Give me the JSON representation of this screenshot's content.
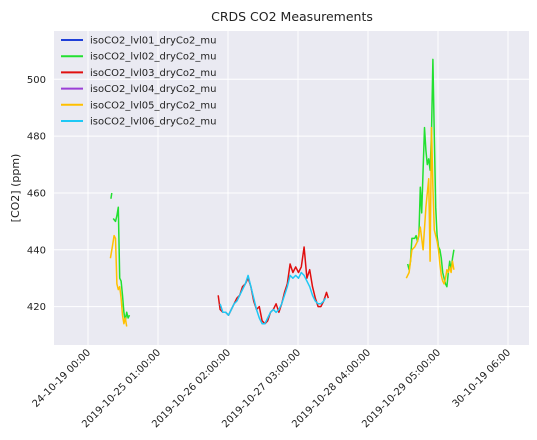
{
  "chart_data": {
    "type": "line",
    "title": "CRDS CO2 Measurements",
    "xlabel": "",
    "ylabel": "[CO2] (ppm)",
    "ylim": [
      406.5,
      517
    ],
    "xlim": [
      "2019-10-24T00:00",
      "2019-10-30T06:00"
    ],
    "x_ticks": [
      {
        "x": "2019-10-24T00:00",
        "label": "24-10-19 00:00"
      },
      {
        "x": "2019-10-25T01:00",
        "label": "2019-10-25 01:00:00"
      },
      {
        "x": "2019-10-26T02:00",
        "label": "2019-10-26 02:00:00"
      },
      {
        "x": "2019-10-27T03:00",
        "label": "2019-10-27 03:00:00"
      },
      {
        "x": "2019-10-28T04:00",
        "label": "2019-10-28 04:00:00"
      },
      {
        "x": "2019-10-29T05:00",
        "label": "2019-10-29 05:00:00"
      },
      {
        "x": "2019-10-30T06:00",
        "label": "30-10-19 06:00"
      }
    ],
    "y_ticks": [
      420,
      440,
      460,
      480,
      500
    ],
    "grid": true,
    "legend_position": "top-left",
    "series": [
      {
        "name": "isoCO2_lvl01_dryCo2_mu",
        "color": "#1f3fd8",
        "segments": []
      },
      {
        "name": "isoCO2_lvl02_dryCo2_mu",
        "color": "#22e030",
        "segments": [
          [
            [
              "2019-10-24T08:10",
              458
            ],
            [
              "2019-10-24T08:30",
              460
            ]
          ],
          [
            [
              "2019-10-24T09:00",
              451
            ],
            [
              "2019-10-24T09:50",
              450
            ],
            [
              "2019-10-24T10:20",
              452
            ],
            [
              "2019-10-24T10:50",
              455
            ],
            [
              "2019-10-24T11:20",
              430
            ],
            [
              "2019-10-24T11:50",
              429
            ],
            [
              "2019-10-24T12:20",
              424
            ],
            [
              "2019-10-24T12:50",
              418
            ],
            [
              "2019-10-24T13:20",
              415
            ],
            [
              "2019-10-24T13:50",
              418
            ],
            [
              "2019-10-24T14:20",
              416
            ],
            [
              "2019-10-24T14:50",
              417
            ]
          ],
          [
            [
              "2019-10-28T18:10",
              435
            ],
            [
              "2019-10-28T18:40",
              433
            ],
            [
              "2019-10-28T19:10",
              436
            ],
            [
              "2019-10-28T19:40",
              444
            ],
            [
              "2019-10-28T20:40",
              444
            ],
            [
              "2019-10-28T21:10",
              445
            ],
            [
              "2019-10-28T21:40",
              443
            ],
            [
              "2019-10-28T22:10",
              445
            ],
            [
              "2019-10-28T22:40",
              462
            ],
            [
              "2019-10-28T23:10",
              453
            ],
            [
              "2019-10-29T00:10",
              483
            ],
            [
              "2019-10-29T00:40",
              475
            ],
            [
              "2019-10-29T01:10",
              470
            ],
            [
              "2019-10-29T01:40",
              472
            ],
            [
              "2019-10-29T02:10",
              468
            ],
            [
              "2019-10-29T02:40",
              481
            ],
            [
              "2019-10-29T03:10",
              507
            ],
            [
              "2019-10-29T03:40",
              480
            ],
            [
              "2019-10-29T04:10",
              455
            ],
            [
              "2019-10-29T04:40",
              445
            ],
            [
              "2019-10-29T05:10",
              441
            ],
            [
              "2019-10-29T05:40",
              440
            ],
            [
              "2019-10-29T06:10",
              437
            ],
            [
              "2019-10-29T06:40",
              432
            ],
            [
              "2019-10-29T07:10",
              430
            ],
            [
              "2019-10-29T07:40",
              428
            ],
            [
              "2019-10-29T08:10",
              427
            ],
            [
              "2019-10-29T08:40",
              432
            ],
            [
              "2019-10-29T09:10",
              436
            ],
            [
              "2019-10-29T09:40",
              433
            ],
            [
              "2019-10-29T10:10",
              437
            ],
            [
              "2019-10-29T10:40",
              440
            ]
          ]
        ]
      },
      {
        "name": "isoCO2_lvl03_dryCo2_mu",
        "color": "#e00f0f",
        "segments": [
          [
            [
              "2019-10-25T22:30",
              424
            ],
            [
              "2019-10-25T23:10",
              419
            ],
            [
              "2019-10-26T00:10",
              418
            ],
            [
              "2019-10-26T01:10",
              418
            ],
            [
              "2019-10-26T02:10",
              417
            ],
            [
              "2019-10-26T03:10",
              419
            ],
            [
              "2019-10-26T04:10",
              421
            ],
            [
              "2019-10-26T05:10",
              423
            ],
            [
              "2019-10-26T06:10",
              424
            ],
            [
              "2019-10-26T07:10",
              427
            ],
            [
              "2019-10-26T08:10",
              428
            ],
            [
              "2019-10-26T09:10",
              430
            ],
            [
              "2019-10-26T10:10",
              427
            ],
            [
              "2019-10-26T11:10",
              422
            ],
            [
              "2019-10-26T12:10",
              419
            ],
            [
              "2019-10-26T13:10",
              420
            ],
            [
              "2019-10-26T14:10",
              415
            ],
            [
              "2019-10-26T15:10",
              414
            ],
            [
              "2019-10-26T16:10",
              415
            ],
            [
              "2019-10-26T17:10",
              418
            ],
            [
              "2019-10-26T18:10",
              419
            ],
            [
              "2019-10-26T19:10",
              421
            ],
            [
              "2019-10-26T20:10",
              418
            ],
            [
              "2019-10-26T21:10",
              421
            ],
            [
              "2019-10-26T22:10",
              425
            ],
            [
              "2019-10-26T23:10",
              428
            ],
            [
              "2019-10-27T00:10",
              435
            ],
            [
              "2019-10-27T01:10",
              432
            ],
            [
              "2019-10-27T02:10",
              434
            ],
            [
              "2019-10-27T03:10",
              432
            ],
            [
              "2019-10-27T04:10",
              434
            ],
            [
              "2019-10-27T05:10",
              441
            ],
            [
              "2019-10-27T06:10",
              430
            ],
            [
              "2019-10-27T07:10",
              433
            ],
            [
              "2019-10-27T08:10",
              427
            ],
            [
              "2019-10-27T09:10",
              423
            ],
            [
              "2019-10-27T10:10",
              420
            ],
            [
              "2019-10-27T11:10",
              420
            ],
            [
              "2019-10-27T12:10",
              422
            ],
            [
              "2019-10-27T13:10",
              425
            ],
            [
              "2019-10-27T13:50",
              423
            ]
          ]
        ]
      },
      {
        "name": "isoCO2_lvl04_dryCo2_mu",
        "color": "#9b3fd6",
        "segments": []
      },
      {
        "name": "isoCO2_lvl05_dryCo2_mu",
        "color": "#ffc000",
        "segments": [
          [
            [
              "2019-10-24T08:00",
              437
            ],
            [
              "2019-10-24T08:40",
              441
            ],
            [
              "2019-10-24T09:20",
              445
            ],
            [
              "2019-10-24T09:50",
              444
            ],
            [
              "2019-10-24T10:20",
              428
            ],
            [
              "2019-10-24T10:50",
              426
            ],
            [
              "2019-10-24T11:20",
              427
            ],
            [
              "2019-10-24T11:50",
              423
            ],
            [
              "2019-10-24T12:20",
              417
            ],
            [
              "2019-10-24T12:50",
              414
            ],
            [
              "2019-10-24T13:20",
              416
            ],
            [
              "2019-10-24T13:50",
              413
            ]
          ],
          [
            [
              "2019-10-28T17:40",
              430
            ],
            [
              "2019-10-28T18:40",
              432
            ],
            [
              "2019-10-28T19:40",
              440
            ],
            [
              "2019-10-28T20:40",
              441
            ],
            [
              "2019-10-28T21:40",
              443
            ],
            [
              "2019-10-28T22:40",
              448
            ],
            [
              "2019-10-28T23:40",
              440
            ],
            [
              "2019-10-29T00:40",
              455
            ],
            [
              "2019-10-29T01:40",
              465
            ],
            [
              "2019-10-29T02:10",
              436
            ],
            [
              "2019-10-29T02:40",
              483
            ],
            [
              "2019-10-29T03:10",
              462
            ],
            [
              "2019-10-29T03:40",
              447
            ],
            [
              "2019-10-29T04:10",
              445
            ],
            [
              "2019-10-29T04:40",
              443
            ],
            [
              "2019-10-29T05:10",
              440
            ],
            [
              "2019-10-29T05:40",
              435
            ],
            [
              "2019-10-29T06:10",
              431
            ],
            [
              "2019-10-29T06:40",
              429
            ],
            [
              "2019-10-29T07:10",
              428
            ],
            [
              "2019-10-29T07:40",
              430
            ],
            [
              "2019-10-29T08:10",
              433
            ],
            [
              "2019-10-29T08:40",
              432
            ],
            [
              "2019-10-29T09:10",
              434
            ],
            [
              "2019-10-29T09:40",
              432
            ],
            [
              "2019-10-29T10:10",
              436
            ],
            [
              "2019-10-29T10:40",
              433
            ]
          ]
        ]
      },
      {
        "name": "isoCO2_lvl06_dryCo2_mu",
        "color": "#1ec8f5",
        "segments": [
          [
            [
              "2019-10-25T23:10",
              421
            ],
            [
              "2019-10-26T00:10",
              418
            ],
            [
              "2019-10-26T01:10",
              418
            ],
            [
              "2019-10-26T02:10",
              417
            ],
            [
              "2019-10-26T03:10",
              419
            ],
            [
              "2019-10-26T04:10",
              421
            ],
            [
              "2019-10-26T05:10",
              422
            ],
            [
              "2019-10-26T06:10",
              424
            ],
            [
              "2019-10-26T07:10",
              426
            ],
            [
              "2019-10-26T08:10",
              428
            ],
            [
              "2019-10-26T09:10",
              431
            ],
            [
              "2019-10-26T10:10",
              427
            ],
            [
              "2019-10-26T11:10",
              423
            ],
            [
              "2019-10-26T12:10",
              419
            ],
            [
              "2019-10-26T13:10",
              416
            ],
            [
              "2019-10-26T14:10",
              414
            ],
            [
              "2019-10-26T15:10",
              414
            ],
            [
              "2019-10-26T16:10",
              416
            ],
            [
              "2019-10-26T17:10",
              418
            ],
            [
              "2019-10-26T18:10",
              419
            ],
            [
              "2019-10-26T19:10",
              418
            ],
            [
              "2019-10-26T20:10",
              419
            ],
            [
              "2019-10-26T21:10",
              421
            ],
            [
              "2019-10-26T22:10",
              424
            ],
            [
              "2019-10-26T23:10",
              427
            ],
            [
              "2019-10-27T00:10",
              431
            ],
            [
              "2019-10-27T01:10",
              430
            ],
            [
              "2019-10-27T02:10",
              431
            ],
            [
              "2019-10-27T03:10",
              430
            ],
            [
              "2019-10-27T04:10",
              432
            ],
            [
              "2019-10-27T05:10",
              431
            ],
            [
              "2019-10-27T06:10",
              429
            ],
            [
              "2019-10-27T07:10",
              427
            ],
            [
              "2019-10-27T08:10",
              424
            ],
            [
              "2019-10-27T09:10",
              422
            ],
            [
              "2019-10-27T10:10",
              421
            ],
            [
              "2019-10-27T11:10",
              421
            ],
            [
              "2019-10-27T12:10",
              422
            ],
            [
              "2019-10-27T12:50",
              423
            ]
          ]
        ]
      }
    ]
  }
}
